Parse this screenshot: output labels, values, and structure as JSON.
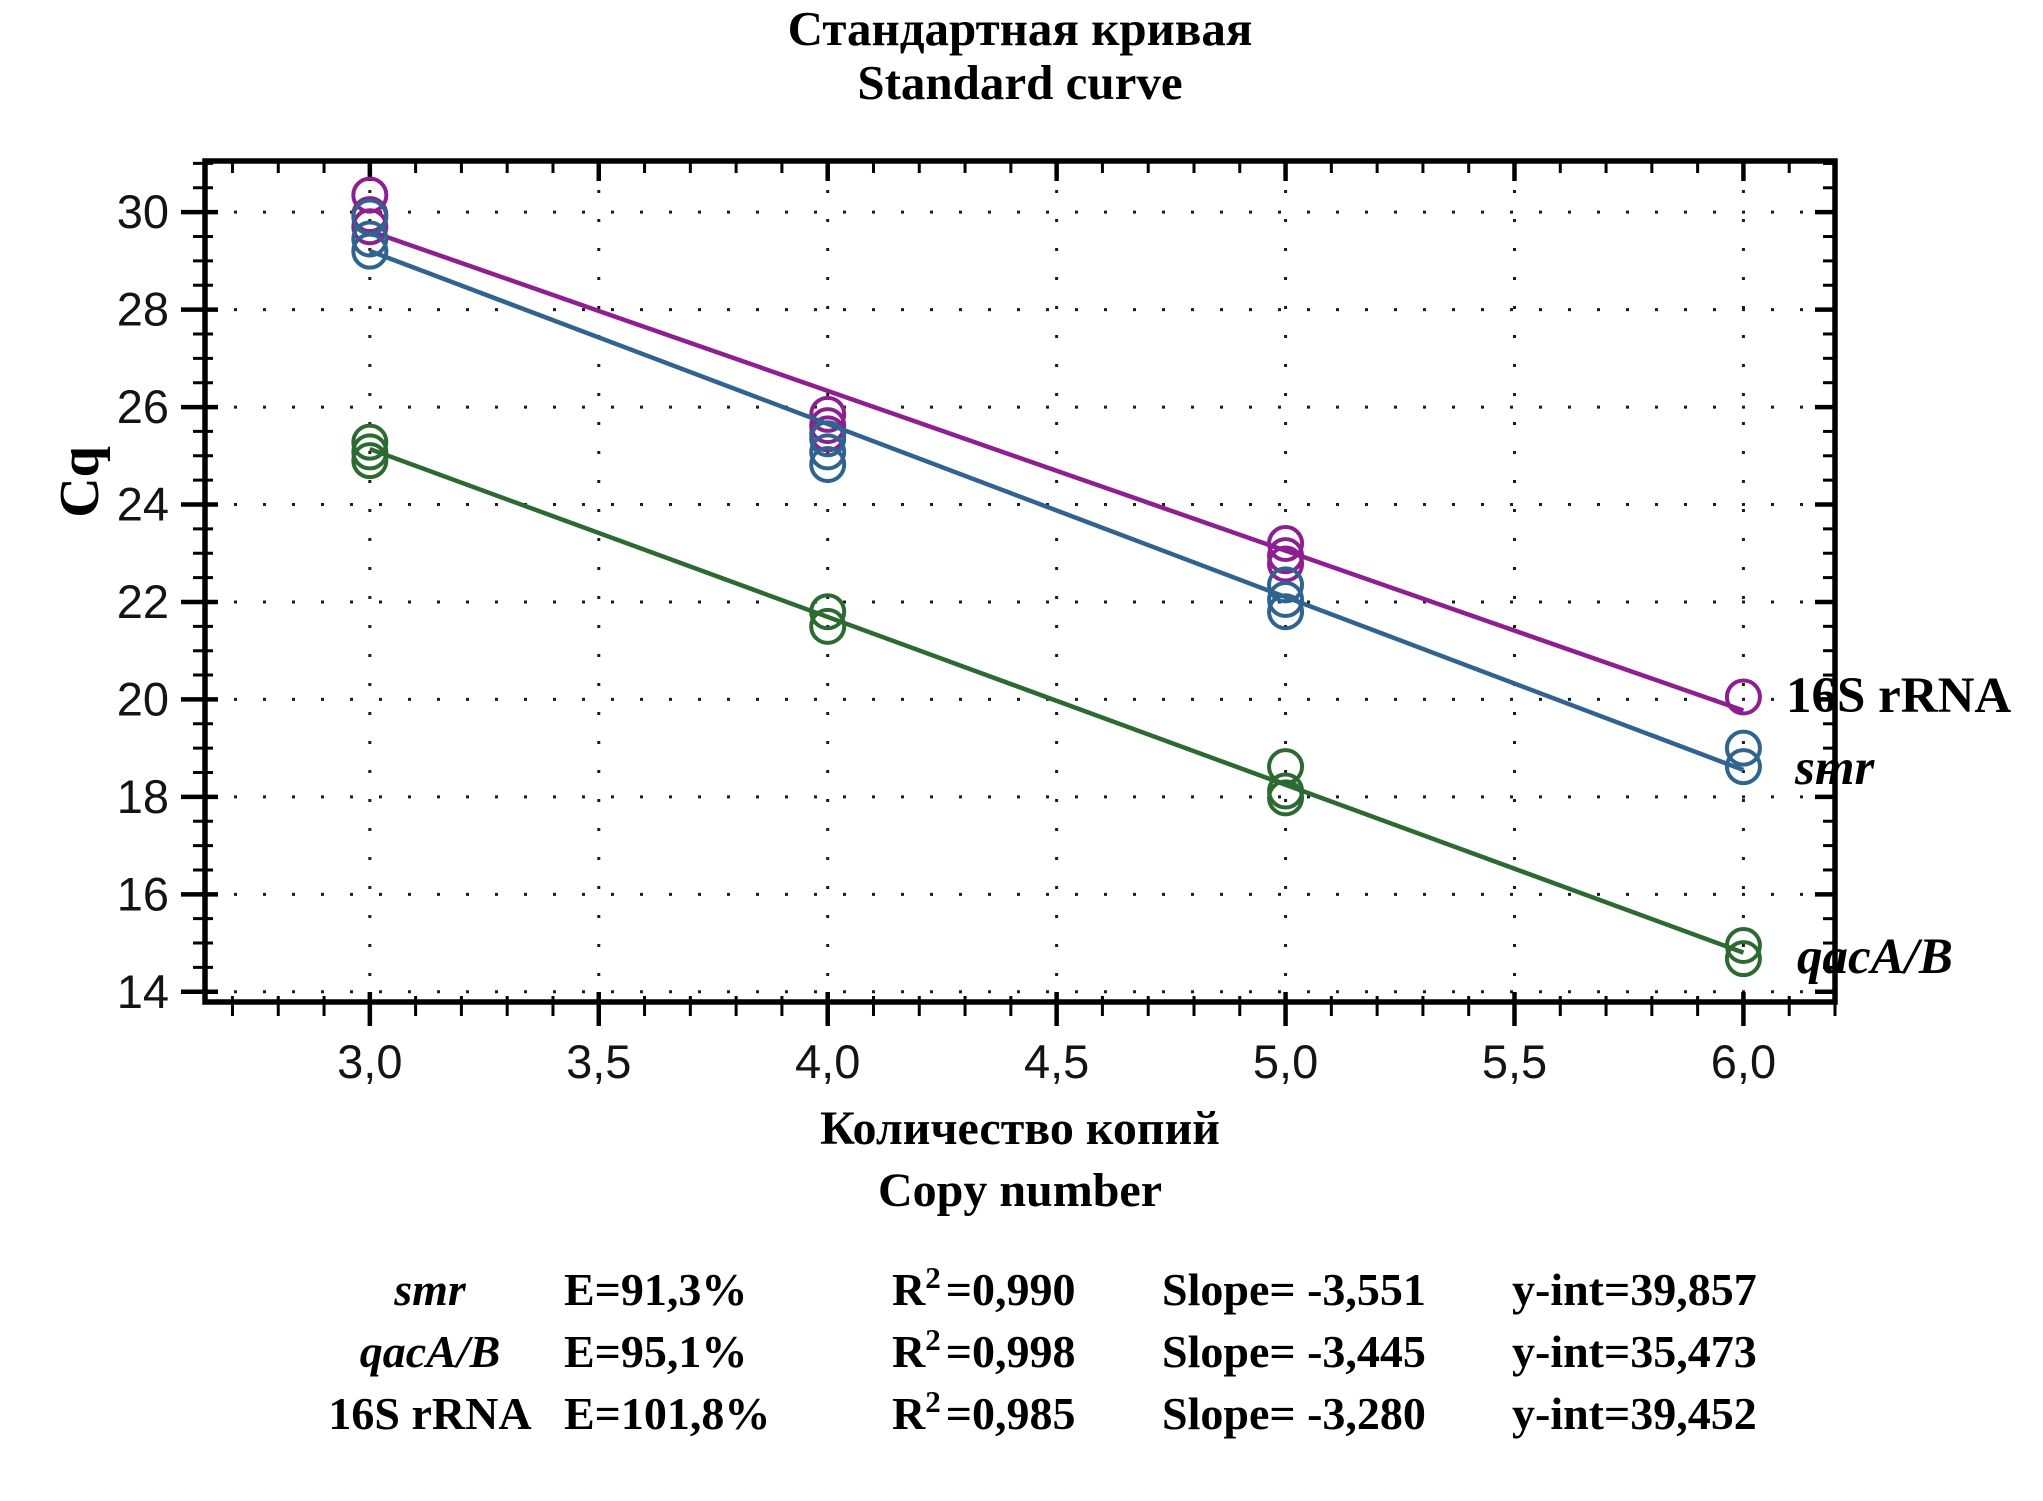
{
  "title": {
    "line1": "Стандартная кривая",
    "line2": "Standard curve"
  },
  "axes": {
    "y_label": "Cq",
    "x_label_line1": "Количество копий",
    "x_label_line2": "Copy number"
  },
  "chart_data": {
    "type": "scatter",
    "title": "Стандартная кривая / Standard curve",
    "xlabel": "Количество копий / Copy number",
    "ylabel": "Cq",
    "grid": "dotted lines at major ticks",
    "legend_position": "right of last data points",
    "x_range": [
      2.64,
      6.2
    ],
    "y_range": [
      13.79,
      31.05
    ],
    "x_ticks": [
      3.0,
      3.5,
      4.0,
      4.5,
      5.0,
      5.5,
      6.0
    ],
    "x_tick_labels": [
      "3,0",
      "3,5",
      "4,0",
      "4,5",
      "5,0",
      "5,5",
      "6,0"
    ],
    "y_ticks": [
      14,
      16,
      18,
      20,
      22,
      24,
      26,
      28,
      30
    ],
    "x_minor_step": 0.1,
    "y_minor_step": 0.5,
    "series": [
      {
        "name": "16S rRNA",
        "color": "#8d1f90",
        "efficiency_percent": 101.8,
        "r_squared": 0.985,
        "slope": -3.28,
        "y_intercept": 39.452,
        "line_x": [
          3.0,
          6.0
        ],
        "points": [
          [
            3,
            30.35
          ],
          [
            3,
            29.95
          ],
          [
            3,
            29.7
          ],
          [
            4,
            25.85
          ],
          [
            4,
            25.62
          ],
          [
            4,
            25.45
          ],
          [
            5,
            23.2
          ],
          [
            5,
            22.95
          ],
          [
            5,
            22.78
          ],
          [
            6,
            20.05
          ]
        ]
      },
      {
        "name": "smr",
        "color": "#2f6390",
        "efficiency_percent": 91.3,
        "r_squared": 0.99,
        "slope": -3.551,
        "y_intercept": 39.857,
        "line_x": [
          3.0,
          6.0
        ],
        "points": [
          [
            3,
            29.9
          ],
          [
            3,
            29.45
          ],
          [
            3,
            29.2
          ],
          [
            4,
            25.35
          ],
          [
            4,
            25.08
          ],
          [
            4,
            24.82
          ],
          [
            5,
            22.35
          ],
          [
            5,
            22.05
          ],
          [
            5,
            21.8
          ],
          [
            6,
            19.0
          ],
          [
            6,
            18.62
          ]
        ]
      },
      {
        "name": "qacA/B",
        "color": "#2d6a31",
        "efficiency_percent": 95.1,
        "r_squared": 0.998,
        "slope": -3.445,
        "y_intercept": 35.473,
        "line_x": [
          3.0,
          6.0
        ],
        "points": [
          [
            3,
            25.28
          ],
          [
            3,
            25.08
          ],
          [
            3,
            24.9
          ],
          [
            4,
            21.8
          ],
          [
            4,
            21.5
          ],
          [
            5,
            18.62
          ],
          [
            5,
            18.12
          ],
          [
            5,
            17.98
          ],
          [
            6,
            14.95
          ],
          [
            6,
            14.68
          ]
        ]
      }
    ]
  },
  "stats": {
    "rows": [
      {
        "gene": "smr",
        "e": "E=91,3%",
        "r2_base": "R",
        "r2_sup": "2",
        "r2_val": "=0,990",
        "slope": "Slope= -3,551",
        "y_int": "y-int=39,857"
      },
      {
        "gene": "qacA/B",
        "e": "E=95,1%",
        "r2_base": "R",
        "r2_sup": "2",
        "r2_val": "=0,998",
        "slope": "Slope= -3,445",
        "y_int": "y-int=35,473"
      },
      {
        "gene": "16S rRNA",
        "e": "E=101,8%",
        "r2_base": "R",
        "r2_sup": "2",
        "r2_val": "=0,985",
        "slope": "Slope= -3,280",
        "y_int": "y-int=39,452"
      }
    ]
  }
}
